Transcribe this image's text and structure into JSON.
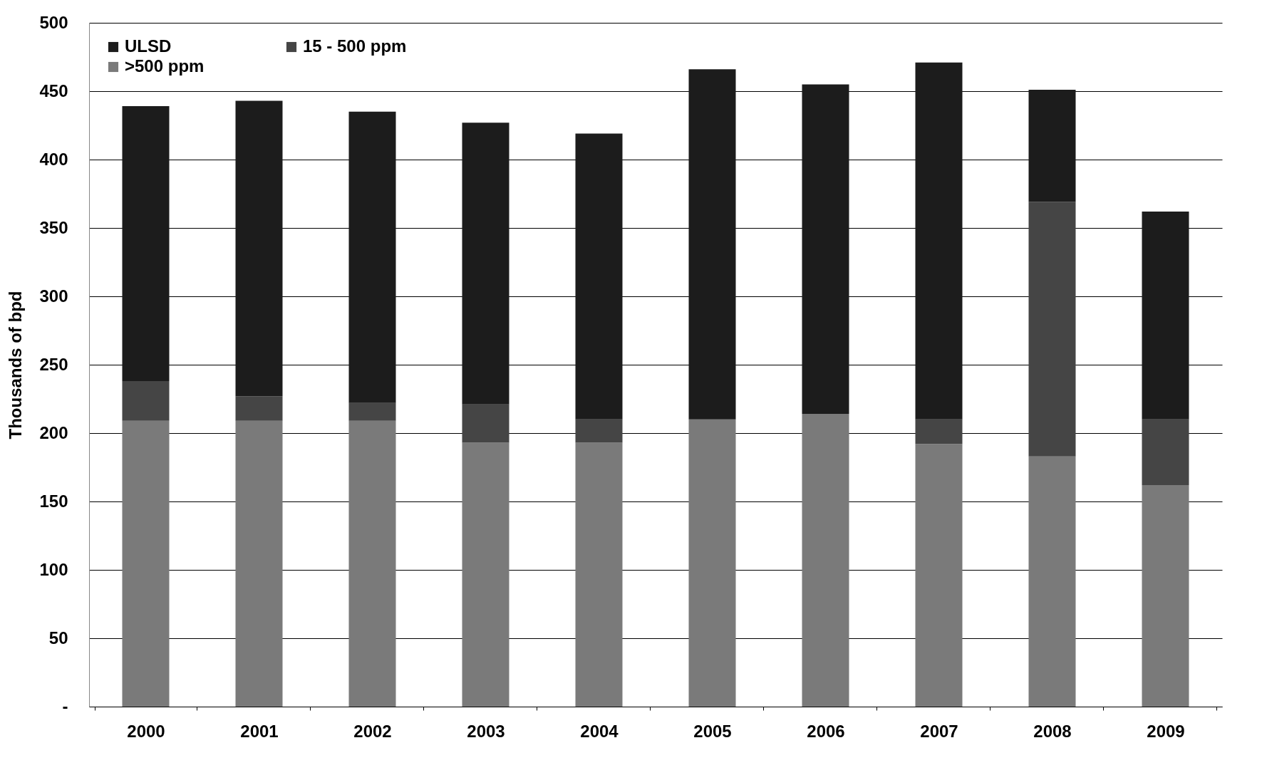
{
  "chart_data": {
    "type": "bar",
    "stacked": true,
    "ylabel": "Thousands of bpd",
    "categories": [
      "2000",
      "2001",
      "2002",
      "2003",
      "2004",
      "2005",
      "2006",
      "2007",
      "2008",
      "2009"
    ],
    "series": [
      {
        "name": ">500 ppm",
        "color": "#7a7a7a",
        "values": [
          209,
          209,
          209,
          193,
          193,
          210,
          214,
          192,
          183,
          162
        ]
      },
      {
        "name": "15 - 500 ppm",
        "color": "#454545",
        "values": [
          29,
          18,
          13,
          28,
          17,
          0,
          0,
          18,
          186,
          48
        ]
      },
      {
        "name": "ULSD",
        "color": "#1c1c1c",
        "values": [
          201,
          216,
          213,
          206,
          209,
          256,
          241,
          261,
          82,
          152
        ]
      }
    ],
    "ylim": [
      0,
      500
    ],
    "yticks": [
      {
        "value": 0,
        "label": "-"
      },
      50,
      100,
      150,
      200,
      250,
      300,
      350,
      400,
      450,
      500
    ],
    "grid": "y",
    "legend": "top left"
  }
}
